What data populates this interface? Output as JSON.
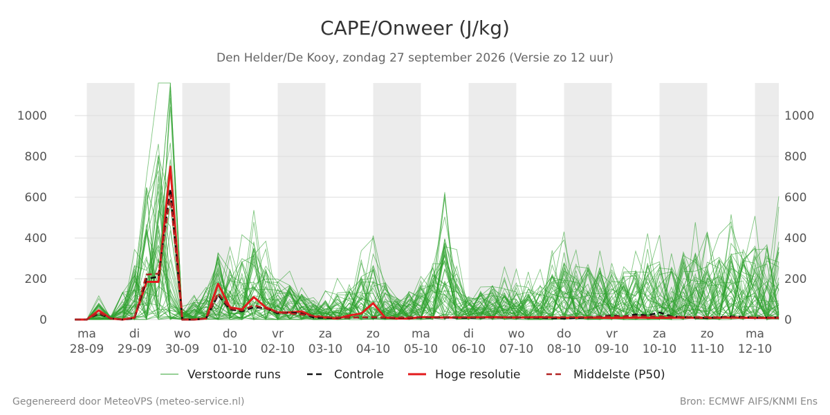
{
  "header": {
    "title": "CAPE/Onweer (J/kg)",
    "subtitle": "Den Helder/De Kooy, zondag 27 september 2026 (Versie zo 12 uur)"
  },
  "footer": {
    "left": "Gegenereerd door MeteoVPS (meteo-service.nl)",
    "right": "Bron: ECMWF AIFS/KNMI Ens"
  },
  "colors": {
    "ensemble": "#2ca02c",
    "control": "#111111",
    "high_res": "#e31a1c",
    "median": "#b22222",
    "night_band": "#ececec",
    "grid": "#dddddd"
  },
  "chart_data": {
    "type": "line",
    "title": "CAPE/Onweer (J/kg)",
    "subtitle": "Den Helder/De Kooy, zondag 27 september 2026 (Versie zo 12 uur)",
    "ylabel": "",
    "xlabel": "",
    "ylim": [
      0,
      1160
    ],
    "yticks": [
      0,
      200,
      400,
      600,
      800,
      1000
    ],
    "xlim": [
      -0.25,
      14.5
    ],
    "x_unit": "days from 28-09 00:00",
    "xticks": [
      {
        "day": "ma",
        "date": "28-09"
      },
      {
        "day": "di",
        "date": "29-09"
      },
      {
        "day": "wo",
        "date": "30-09"
      },
      {
        "day": "do",
        "date": "01-10"
      },
      {
        "day": "vr",
        "date": "02-10"
      },
      {
        "day": "za",
        "date": "03-10"
      },
      {
        "day": "zo",
        "date": "04-10"
      },
      {
        "day": "ma",
        "date": "05-10"
      },
      {
        "day": "di",
        "date": "06-10"
      },
      {
        "day": "wo",
        "date": "07-10"
      },
      {
        "day": "do",
        "date": "08-10"
      },
      {
        "day": "vr",
        "date": "09-10"
      },
      {
        "day": "za",
        "date": "10-10"
      },
      {
        "day": "zo",
        "date": "11-10"
      },
      {
        "day": "ma",
        "date": "12-10"
      }
    ],
    "shaded_days": [
      0,
      2,
      4,
      6,
      8,
      10,
      12,
      14
    ],
    "grid": true,
    "legend_position": "bottom",
    "legend": [
      {
        "label": "Verstoorde runs",
        "style": "thin-green"
      },
      {
        "label": "Controle",
        "style": "black-dashed"
      },
      {
        "label": "Hoge resolutie",
        "style": "red-solid"
      },
      {
        "label": "Middelste (P50)",
        "style": "darkred-dashed"
      }
    ],
    "series": [
      {
        "name": "Hoge resolutie",
        "x": [
          -0.25,
          0,
          0.25,
          0.5,
          0.75,
          1,
          1.25,
          1.5,
          1.75,
          2,
          2.25,
          2.5,
          2.75,
          3,
          3.25,
          3.5,
          3.75,
          4,
          4.25,
          4.5,
          4.75,
          5,
          5.25,
          5.5,
          5.75,
          6,
          6.25,
          6.5,
          6.75,
          7,
          7.5,
          8,
          8.5,
          9,
          9.5,
          10,
          10.5,
          11,
          11.5,
          12,
          12.5,
          13,
          13.5,
          14,
          14.5
        ],
        "y": [
          0,
          0,
          45,
          5,
          0,
          10,
          185,
          185,
          750,
          0,
          0,
          5,
          175,
          60,
          50,
          110,
          60,
          35,
          35,
          40,
          15,
          10,
          5,
          20,
          30,
          80,
          10,
          5,
          5,
          12,
          10,
          10,
          12,
          10,
          12,
          8,
          10,
          8,
          10,
          8,
          10,
          8,
          10,
          8,
          8
        ]
      },
      {
        "name": "Controle",
        "x": [
          -0.25,
          0,
          0.25,
          0.5,
          0.75,
          1,
          1.25,
          1.5,
          1.75,
          2,
          2.25,
          2.5,
          2.75,
          3,
          3.25,
          3.5,
          3.75,
          4,
          4.25,
          4.5,
          4.75,
          5,
          5.5,
          6,
          6.5,
          7,
          7.5,
          8,
          8.5,
          9,
          9.5,
          10,
          10.5,
          11,
          11.25,
          11.5,
          11.75,
          12,
          12.25,
          12.5,
          13,
          13.5,
          14,
          14.5
        ],
        "y": [
          0,
          0,
          30,
          5,
          0,
          5,
          200,
          210,
          640,
          0,
          0,
          5,
          120,
          50,
          40,
          60,
          55,
          30,
          35,
          30,
          10,
          8,
          10,
          10,
          8,
          10,
          10,
          8,
          10,
          10,
          8,
          5,
          10,
          20,
          15,
          25,
          20,
          35,
          15,
          12,
          8,
          15,
          10,
          10
        ]
      },
      {
        "name": "Middelste (P50)",
        "x": [
          -0.25,
          0,
          0.25,
          0.5,
          0.75,
          1,
          1.25,
          1.5,
          1.75,
          2,
          2.25,
          2.5,
          2.75,
          3,
          3.25,
          3.5,
          3.75,
          4,
          4.5,
          5,
          5.5,
          6,
          6.5,
          7,
          7.5,
          8,
          8.5,
          9,
          9.5,
          10,
          10.5,
          11,
          11.5,
          12,
          12.5,
          13,
          13.5,
          14,
          14.5
        ],
        "y": [
          0,
          0,
          35,
          5,
          0,
          8,
          220,
          225,
          610,
          0,
          0,
          5,
          130,
          55,
          45,
          70,
          55,
          35,
          25,
          12,
          10,
          12,
          10,
          12,
          12,
          12,
          10,
          12,
          10,
          12,
          12,
          15,
          15,
          15,
          12,
          12,
          12,
          10,
          10
        ]
      }
    ],
    "ensemble_members": 50,
    "ensemble_peak": 1160
  }
}
